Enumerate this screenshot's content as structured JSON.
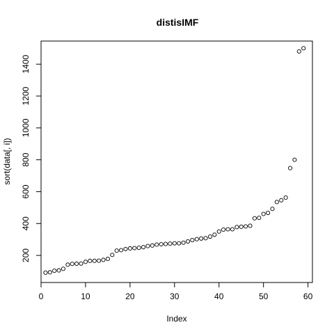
{
  "chart_data": {
    "type": "scatter",
    "title": "distisIMF",
    "xlabel": "Index",
    "ylabel": "sort(data[, i])",
    "xlim": [
      0,
      61
    ],
    "ylim": [
      30,
      1545
    ],
    "x_ticks": [
      0,
      10,
      20,
      30,
      40,
      50,
      60
    ],
    "y_ticks": [
      200,
      400,
      600,
      800,
      1000,
      1200,
      1400
    ],
    "grid": false,
    "marker": "open-circle",
    "series": [
      {
        "x": [
          1,
          2,
          3,
          4,
          5,
          6,
          7,
          8,
          9,
          10,
          11,
          12,
          13,
          14,
          15,
          16,
          17,
          18,
          19,
          20,
          21,
          22,
          23,
          24,
          25,
          26,
          27,
          28,
          29,
          30,
          31,
          32,
          33,
          34,
          35,
          36,
          37,
          38,
          39,
          40,
          41,
          42,
          43,
          44,
          45,
          46,
          47,
          48,
          49,
          50,
          51,
          52,
          53,
          54,
          55,
          56,
          57,
          58,
          59
        ],
        "y": [
          92,
          94,
          104,
          106,
          116,
          142,
          147,
          148,
          149,
          160,
          166,
          166,
          167,
          172,
          178,
          203,
          230,
          233,
          240,
          244,
          246,
          248,
          252,
          259,
          262,
          268,
          270,
          272,
          274,
          276,
          276,
          280,
          288,
          296,
          302,
          306,
          308,
          318,
          330,
          350,
          362,
          364,
          364,
          378,
          380,
          382,
          386,
          433,
          436,
          460,
          467,
          492,
          535,
          546,
          563,
          748,
          800,
          1480,
          1500
        ]
      }
    ]
  }
}
